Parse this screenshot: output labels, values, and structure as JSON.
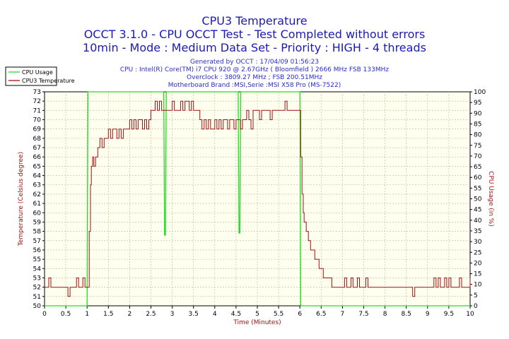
{
  "header": {
    "title": "CPU3 Temperature",
    "line2": "OCCT 3.1.0 - CPU OCCT Test - Test Completed without errors",
    "line3": "10min - Mode : Medium Data Set - Priority : HIGH - 4 threads",
    "generated": "Generated by OCCT : 17/04/09 01:56:23",
    "cpu": "CPU : Intel(R) Core(TM) i7 CPU 920 @ 2.67GHz ( Bloomfield ) 2666 MHz FSB 133MHz",
    "overclock": "Overclock : 3809.27 MHz ; FSB 200.51MHz",
    "motherboard": "Motherboard Brand :MSI,Serie :MSI X58 Pro (MS-7522)"
  },
  "chart_data": {
    "type": "line",
    "xlabel": "Time (Minutes)",
    "ylabel": "Temperature (Celsius degree)",
    "y2label": "CPU Usage (in %)",
    "xlim": [
      0,
      10
    ],
    "ylim": [
      50,
      73
    ],
    "y2lim": [
      0,
      100
    ],
    "x_ticks": [
      "0",
      "0.5",
      "1",
      "1.5",
      "2",
      "2.5",
      "3",
      "3.5",
      "4",
      "4.5",
      "5",
      "5.5",
      "6",
      "6.5",
      "7",
      "7.5",
      "8",
      "8.5",
      "9",
      "9.5",
      "10"
    ],
    "y_ticks": [
      "50",
      "51",
      "52",
      "53",
      "54",
      "55",
      "56",
      "57",
      "58",
      "59",
      "60",
      "61",
      "62",
      "63",
      "64",
      "65",
      "66",
      "67",
      "68",
      "69",
      "70",
      "71",
      "72",
      "73"
    ],
    "y2_ticks": [
      "0",
      "5",
      "10",
      "15",
      "20",
      "25",
      "30",
      "35",
      "40",
      "45",
      "50",
      "55",
      "60",
      "65",
      "70",
      "75",
      "80",
      "85",
      "90",
      "95",
      "100"
    ],
    "legend": {
      "placement": "top-left",
      "items": [
        "CPU Usage",
        "CPU3 Temperature"
      ]
    },
    "colors": {
      "cpu_usage": "#22dd22",
      "temperature": "#a01010",
      "plot_bg": "#fffff0",
      "grid": "#b8b890"
    },
    "series": [
      {
        "name": "CPU Usage",
        "axis": "right",
        "x": [
          0,
          1.0,
          1.02,
          1.06,
          2.8,
          2.82,
          2.84,
          2.86,
          4.55,
          4.57,
          4.59,
          4.61,
          6.0,
          6.02,
          6.04,
          10
        ],
        "values": [
          0,
          0,
          100,
          100,
          100,
          33,
          33,
          100,
          100,
          34,
          34,
          100,
          100,
          0,
          0,
          0
        ]
      },
      {
        "name": "CPU3 Temperature",
        "axis": "left",
        "x": [
          0,
          0.05,
          0.1,
          0.15,
          0.2,
          0.25,
          0.3,
          0.35,
          0.4,
          0.45,
          0.5,
          0.55,
          0.6,
          0.65,
          0.7,
          0.75,
          0.8,
          0.85,
          0.9,
          0.95,
          1.0,
          1.05,
          1.08,
          1.1,
          1.13,
          1.16,
          1.2,
          1.25,
          1.3,
          1.35,
          1.4,
          1.45,
          1.5,
          1.55,
          1.6,
          1.65,
          1.7,
          1.75,
          1.8,
          1.85,
          1.9,
          1.95,
          2.0,
          2.05,
          2.1,
          2.15,
          2.2,
          2.25,
          2.3,
          2.35,
          2.4,
          2.45,
          2.5,
          2.55,
          2.6,
          2.65,
          2.7,
          2.75,
          2.8,
          2.85,
          2.9,
          2.95,
          3.0,
          3.05,
          3.1,
          3.15,
          3.2,
          3.25,
          3.3,
          3.35,
          3.4,
          3.45,
          3.5,
          3.55,
          3.6,
          3.65,
          3.7,
          3.75,
          3.8,
          3.85,
          3.9,
          3.95,
          4.0,
          4.05,
          4.1,
          4.15,
          4.2,
          4.25,
          4.3,
          4.35,
          4.4,
          4.45,
          4.5,
          4.55,
          4.6,
          4.65,
          4.7,
          4.75,
          4.8,
          4.85,
          4.9,
          4.95,
          5.0,
          5.05,
          5.1,
          5.15,
          5.2,
          5.25,
          5.3,
          5.35,
          5.4,
          5.45,
          5.5,
          5.55,
          5.6,
          5.65,
          5.7,
          5.75,
          5.8,
          5.85,
          5.9,
          5.95,
          6.0,
          6.02,
          6.05,
          6.08,
          6.1,
          6.15,
          6.2,
          6.25,
          6.3,
          6.35,
          6.4,
          6.45,
          6.5,
          6.55,
          6.6,
          6.65,
          6.7,
          6.75,
          6.8,
          6.85,
          6.9,
          6.95,
          7.0,
          7.05,
          7.1,
          7.15,
          7.2,
          7.25,
          7.3,
          7.35,
          7.4,
          7.45,
          7.5,
          7.55,
          7.6,
          7.65,
          7.7,
          7.75,
          7.8,
          7.85,
          7.9,
          7.95,
          8.0,
          8.05,
          8.1,
          8.15,
          8.2,
          8.25,
          8.3,
          8.35,
          8.4,
          8.45,
          8.5,
          8.55,
          8.6,
          8.65,
          8.7,
          8.75,
          8.8,
          8.85,
          8.9,
          8.95,
          9.0,
          9.05,
          9.1,
          9.15,
          9.2,
          9.25,
          9.3,
          9.35,
          9.4,
          9.45,
          9.5,
          9.55,
          9.6,
          9.65,
          9.7,
          9.75,
          9.8,
          9.85,
          9.9,
          9.95,
          10.0
        ],
        "values": [
          52,
          52,
          53,
          52,
          52,
          52,
          52,
          52,
          52,
          52,
          52,
          51,
          52,
          52,
          52,
          53,
          52,
          52,
          53,
          52,
          52,
          58,
          63,
          65,
          66,
          65,
          66,
          67,
          68,
          67,
          68,
          68,
          69,
          68,
          69,
          69,
          68,
          69,
          68,
          69,
          69,
          69,
          70,
          69,
          70,
          69,
          70,
          70,
          69,
          70,
          69,
          70,
          71,
          71,
          72,
          71,
          72,
          71,
          71,
          71,
          71,
          71,
          72,
          71,
          71,
          71,
          72,
          71,
          72,
          72,
          71,
          72,
          71,
          71,
          71,
          70,
          69,
          70,
          69,
          70,
          69,
          69,
          70,
          69,
          70,
          69,
          70,
          70,
          69,
          70,
          70,
          69,
          70,
          70,
          69,
          70,
          70,
          71,
          70,
          69,
          71,
          71,
          71,
          70,
          71,
          71,
          71,
          71,
          70,
          71,
          71,
          71,
          71,
          71,
          71,
          72,
          71,
          71,
          71,
          71,
          71,
          71,
          71,
          66,
          62,
          60,
          59,
          58,
          57,
          56,
          56,
          55,
          55,
          54,
          54,
          53,
          53,
          53,
          53,
          52,
          52,
          52,
          52,
          52,
          52,
          53,
          52,
          52,
          53,
          52,
          52,
          53,
          52,
          52,
          52,
          53,
          52,
          52,
          52,
          52,
          52,
          52,
          52,
          52,
          52,
          52,
          52,
          52,
          52,
          52,
          52,
          52,
          52,
          52,
          52,
          52,
          52,
          51,
          52,
          52,
          52,
          52,
          52,
          52,
          52,
          52,
          52,
          53,
          52,
          53,
          52,
          52,
          53,
          52,
          53,
          52,
          52,
          52,
          52,
          53,
          52,
          52,
          52,
          52,
          53
        ]
      }
    ]
  }
}
